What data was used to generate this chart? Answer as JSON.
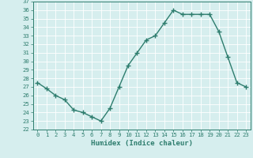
{
  "title": "",
  "xlabel": "Humidex (Indice chaleur)",
  "ylabel": "",
  "x_values": [
    0,
    1,
    2,
    3,
    4,
    5,
    6,
    7,
    8,
    9,
    10,
    11,
    12,
    13,
    14,
    15,
    16,
    17,
    18,
    19,
    20,
    21,
    22,
    23
  ],
  "y_values": [
    27.5,
    26.8,
    26.0,
    25.5,
    24.3,
    24.0,
    23.5,
    23.0,
    24.5,
    27.0,
    29.5,
    31.0,
    32.5,
    33.0,
    34.5,
    36.0,
    35.5,
    35.5,
    35.5,
    35.5,
    33.5,
    30.5,
    27.5,
    27.0
  ],
  "ylim_min": 22,
  "ylim_max": 37,
  "ytick_step": 1,
  "line_color": "#2e7d6e",
  "marker_color": "#2e7d6e",
  "bg_color": "#d6eeee",
  "grid_color": "#ffffff",
  "text_color": "#2e7d6e",
  "font_family": "monospace",
  "xlabel_fontsize": 6.5,
  "tick_fontsize": 5.2
}
